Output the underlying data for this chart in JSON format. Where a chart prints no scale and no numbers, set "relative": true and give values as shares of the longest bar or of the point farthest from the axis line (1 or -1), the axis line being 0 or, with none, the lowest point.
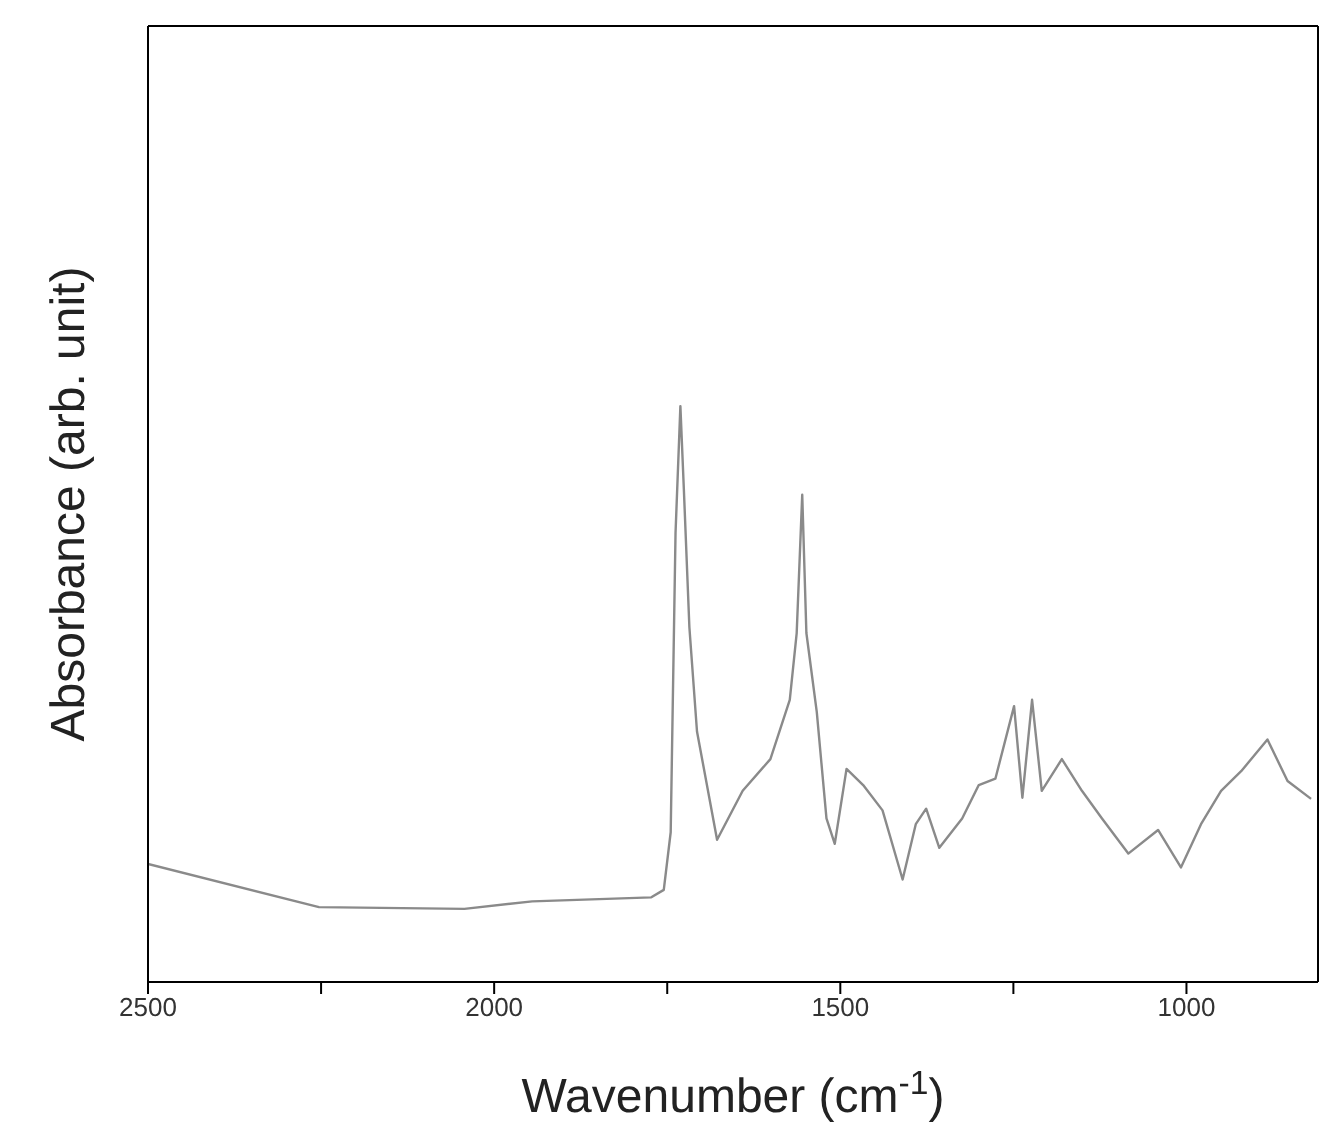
{
  "chart_data": {
    "type": "line",
    "xlabel": "Wavenumber (cm$^{-1}$)",
    "ylabel": "Absorbance (arb. unit)",
    "relative": true,
    "xlim": [
      2500,
      810
    ],
    "xticks": [
      2500,
      {
        "value": 2250,
        "label": null
      },
      2000,
      {
        "value": 1750,
        "label": null
      },
      1500,
      {
        "value": 1250,
        "label": null
      },
      1000
    ],
    "marker": "none",
    "line_style": "solid",
    "series": [
      {
        "color": "#8a8a8a",
        "x": [
          2500,
          2253,
          2043,
          1945,
          1773,
          1755,
          1745,
          1738,
          1731,
          1726,
          1718,
          1707,
          1678,
          1641,
          1601,
          1573,
          1563,
          1555,
          1549,
          1534,
          1520,
          1508,
          1491,
          1467,
          1439,
          1410,
          1391,
          1376,
          1357,
          1324,
          1300,
          1276,
          1249,
          1237,
          1223,
          1209,
          1180,
          1151,
          1122,
          1084,
          1041,
          1008,
          979,
          950,
          921,
          883,
          854,
          820
        ],
        "values": [
          0.205,
          0.13,
          0.127,
          0.14,
          0.147,
          0.16,
          0.26,
          0.78,
          1.0,
          0.856,
          0.616,
          0.435,
          0.247,
          0.332,
          0.387,
          0.49,
          0.606,
          0.846,
          0.606,
          0.469,
          0.284,
          0.24,
          0.37,
          0.342,
          0.298,
          0.178,
          0.274,
          0.301,
          0.233,
          0.284,
          0.342,
          0.353,
          0.479,
          0.32,
          0.49,
          0.332,
          0.387,
          0.332,
          0.284,
          0.223,
          0.264,
          0.199,
          0.274,
          0.332,
          0.366,
          0.421,
          0.349,
          0.318
        ]
      }
    ]
  }
}
